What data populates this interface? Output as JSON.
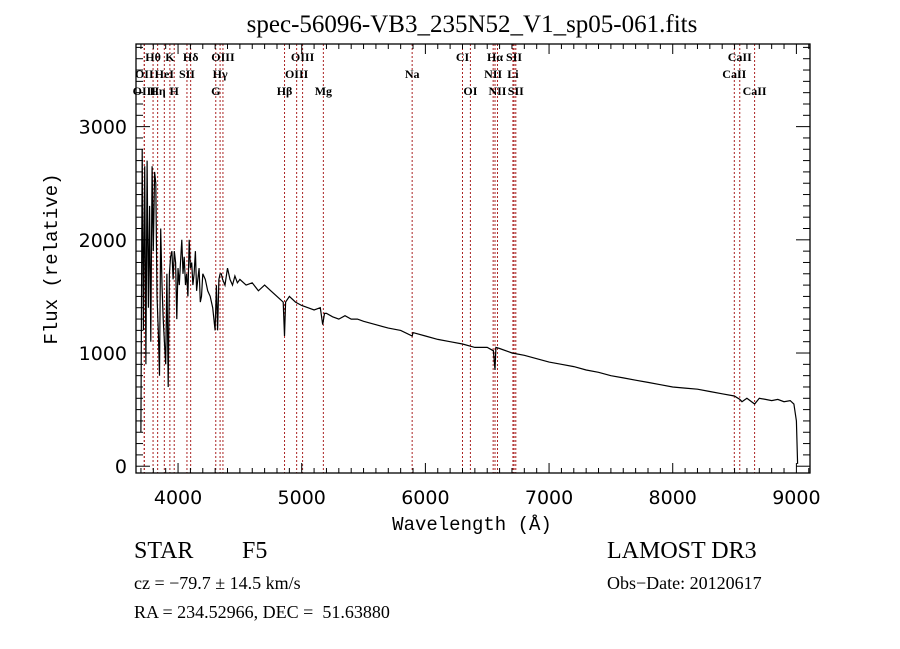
{
  "chart_data": {
    "type": "line",
    "title": "spec-56096-VB3_235N52_V1_sp05-061.fits",
    "xlabel": "Wavelength (Å)",
    "ylabel": "Flux (relative)",
    "xlim": [
      3660,
      9110
    ],
    "ylim": [
      -60,
      3730
    ],
    "xticks": [
      4000,
      5000,
      6000,
      7000,
      8000,
      9000
    ],
    "xtick_labels": [
      "4000",
      "5000",
      "6000",
      "7000",
      "8000",
      "9000"
    ],
    "yticks": [
      0,
      1000,
      2000,
      3000
    ],
    "ytick_labels": [
      "0",
      "1000",
      "2000",
      "3000"
    ],
    "grid": false,
    "series": [
      {
        "name": "spectrum",
        "color": "#000000",
        "x": [
          3700,
          3710,
          3720,
          3730,
          3740,
          3750,
          3760,
          3770,
          3780,
          3790,
          3800,
          3810,
          3820,
          3830,
          3840,
          3850,
          3860,
          3870,
          3880,
          3890,
          3900,
          3910,
          3920,
          3930,
          3940,
          3950,
          3960,
          3970,
          3980,
          3990,
          4000,
          4010,
          4020,
          4030,
          4040,
          4050,
          4060,
          4070,
          4080,
          4090,
          4100,
          4110,
          4120,
          4130,
          4140,
          4150,
          4160,
          4170,
          4180,
          4190,
          4200,
          4220,
          4240,
          4260,
          4280,
          4300,
          4310,
          4320,
          4330,
          4340,
          4350,
          4360,
          4380,
          4400,
          4420,
          4440,
          4460,
          4480,
          4500,
          4550,
          4600,
          4650,
          4700,
          4750,
          4800,
          4850,
          4861,
          4870,
          4900,
          4950,
          5000,
          5050,
          5100,
          5150,
          5170,
          5184,
          5200,
          5250,
          5300,
          5350,
          5400,
          5450,
          5500,
          5600,
          5700,
          5800,
          5893,
          5900,
          6000,
          6100,
          6200,
          6300,
          6400,
          6500,
          6550,
          6563,
          6570,
          6600,
          6700,
          6800,
          6900,
          7000,
          7100,
          7200,
          7300,
          7400,
          7500,
          7600,
          7700,
          7800,
          7900,
          8000,
          8100,
          8200,
          8300,
          8400,
          8498,
          8542,
          8560,
          8600,
          8662,
          8700,
          8750,
          8800,
          8850,
          8900,
          8950,
          8980,
          9000,
          9010
        ],
        "y": [
          300,
          2800,
          1200,
          2650,
          900,
          2700,
          1400,
          2300,
          1100,
          2650,
          1900,
          2600,
          2500,
          1500,
          1200,
          800,
          2100,
          1600,
          1300,
          1100,
          900,
          1700,
          700,
          1700,
          1850,
          1900,
          1650,
          1900,
          1800,
          1300,
          1750,
          1600,
          1800,
          2000,
          1700,
          1850,
          1600,
          1700,
          1500,
          2000,
          1750,
          1800,
          1600,
          1700,
          1900,
          1550,
          1650,
          1750,
          1450,
          1500,
          1700,
          1650,
          1550,
          1500,
          1400,
          1200,
          1600,
          1200,
          1650,
          1700,
          1700,
          1650,
          1600,
          1750,
          1650,
          1600,
          1680,
          1620,
          1650,
          1600,
          1620,
          1550,
          1600,
          1550,
          1500,
          1450,
          1150,
          1450,
          1500,
          1450,
          1420,
          1400,
          1380,
          1400,
          1250,
          1350,
          1350,
          1320,
          1300,
          1330,
          1300,
          1300,
          1280,
          1250,
          1220,
          1200,
          1150,
          1180,
          1150,
          1120,
          1100,
          1080,
          1050,
          1050,
          1020,
          850,
          1050,
          1040,
          1000,
          980,
          950,
          920,
          900,
          880,
          850,
          830,
          800,
          780,
          760,
          740,
          720,
          700,
          690,
          680,
          660,
          640,
          620,
          590,
          570,
          600,
          550,
          600,
          590,
          580,
          590,
          570,
          580,
          550,
          400,
          20
        ]
      }
    ],
    "line_markers": {
      "color": "#aa2222",
      "lines": [
        {
          "label": "Hθ",
          "wavelength": 3798,
          "row": 1
        },
        {
          "label": "K",
          "wavelength": 3934,
          "row": 1
        },
        {
          "label": "Hδ",
          "wavelength": 4102,
          "row": 1
        },
        {
          "label": "OIII",
          "wavelength": 4363,
          "row": 1
        },
        {
          "label": "OIII",
          "wavelength": 5007,
          "row": 1
        },
        {
          "label": "CI",
          "wavelength": 6300,
          "row": 1
        },
        {
          "label": "Hα",
          "wavelength": 6563,
          "row": 1
        },
        {
          "label": "SII",
          "wavelength": 6717,
          "row": 1
        },
        {
          "label": "CaII",
          "wavelength": 8542,
          "row": 1
        },
        {
          "label": "OII",
          "wavelength": 3727,
          "row": 2
        },
        {
          "label": "HeI",
          "wavelength": 3889,
          "row": 2
        },
        {
          "label": "SII",
          "wavelength": 4072,
          "row": 2
        },
        {
          "label": "Hγ",
          "wavelength": 4340,
          "row": 2
        },
        {
          "label": "OIII",
          "wavelength": 4959,
          "row": 2
        },
        {
          "label": "Na",
          "wavelength": 5893,
          "row": 2
        },
        {
          "label": "NII",
          "wavelength": 6548,
          "row": 2
        },
        {
          "label": "Li",
          "wavelength": 6708,
          "row": 2
        },
        {
          "label": "CaII",
          "wavelength": 8498,
          "row": 2
        },
        {
          "label": "OIII",
          "wavelength": 3727,
          "row": 3
        },
        {
          "label": "Hη",
          "wavelength": 3835,
          "row": 3
        },
        {
          "label": "H",
          "wavelength": 3969,
          "row": 3
        },
        {
          "label": "G",
          "wavelength": 4305,
          "row": 3
        },
        {
          "label": "Hβ",
          "wavelength": 4861,
          "row": 3
        },
        {
          "label": "Mg",
          "wavelength": 5175,
          "row": 3
        },
        {
          "label": "OI",
          "wavelength": 6364,
          "row": 3
        },
        {
          "label": "NII",
          "wavelength": 6583,
          "row": 3
        },
        {
          "label": "SII",
          "wavelength": 6731,
          "row": 3
        },
        {
          "label": "CaII",
          "wavelength": 8662,
          "row": 3
        }
      ]
    }
  },
  "info": {
    "object_class": "STAR",
    "subclass": "F5",
    "survey": "LAMOST DR3",
    "redshift_line": "cz = −79.7 ± 14.5 km/s",
    "obs_date_line": "Obs−Date: 20120617",
    "coords_line": "RA = 234.52966, DEC =  51.63880"
  }
}
